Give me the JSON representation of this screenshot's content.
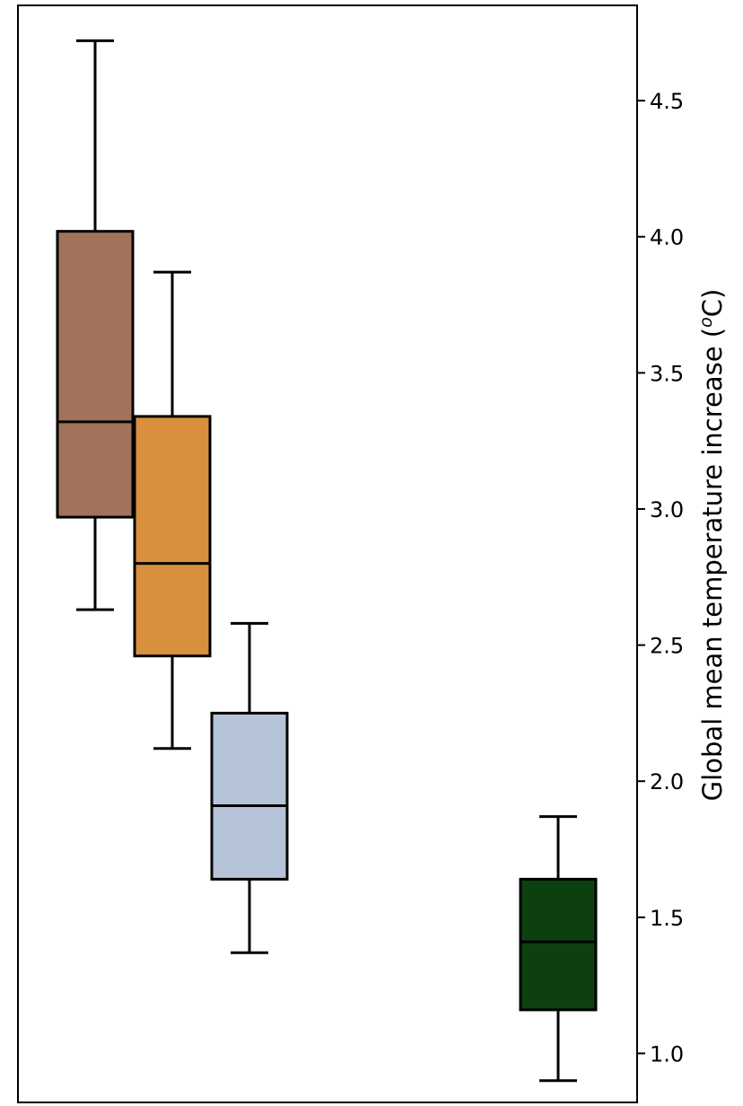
{
  "chart_data": {
    "type": "boxplot",
    "title": "",
    "xlabel": "",
    "ylabel_text": "Global mean temperature increase (",
    "ylabel_superscript": "o",
    "ylabel_unit": "C)",
    "y_axis_side": "right",
    "ylim": [
      0.82,
      4.85
    ],
    "yticks": [
      1.0,
      1.5,
      2.0,
      2.5,
      3.0,
      3.5,
      4.0,
      4.5
    ],
    "ytick_labels": [
      "1.0",
      "1.5",
      "2.0",
      "2.5",
      "3.0",
      "3.5",
      "4.0",
      "4.5"
    ],
    "grid": false,
    "legend": "none",
    "boxes": [
      {
        "position": 1,
        "whisker_low": 2.63,
        "q1": 2.97,
        "median": 3.32,
        "q3": 4.02,
        "whisker_high": 4.72,
        "color": "#a0735a"
      },
      {
        "position": 2,
        "whisker_low": 2.12,
        "q1": 2.46,
        "median": 2.8,
        "q3": 3.34,
        "whisker_high": 3.87,
        "color": "#d9903e"
      },
      {
        "position": 3,
        "whisker_low": 1.37,
        "q1": 1.64,
        "median": 1.91,
        "q3": 2.25,
        "whisker_high": 2.58,
        "color": "#b5c4d8"
      },
      {
        "position": 7,
        "whisker_low": 0.9,
        "q1": 1.16,
        "median": 1.41,
        "q3": 1.64,
        "whisker_high": 1.87,
        "color": "#0d4010"
      }
    ]
  }
}
